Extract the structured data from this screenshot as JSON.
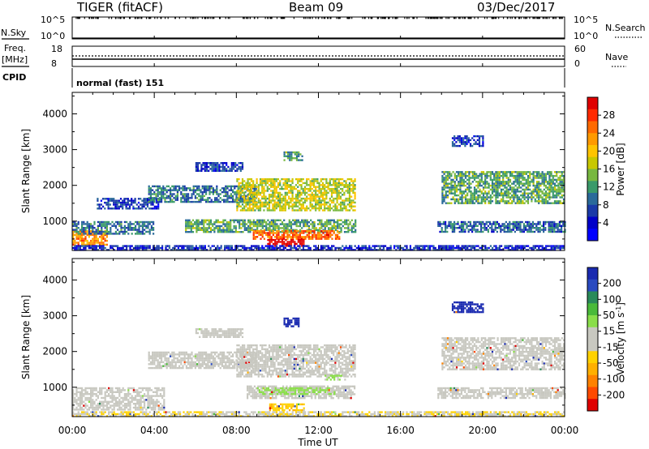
{
  "header": {
    "radar": "TIGER (fitACF)",
    "beam": "Beam 09",
    "date": "03/Dec/2017"
  },
  "top_panels": {
    "nsky_label": "N.Sky",
    "nsky_ticks": [
      "10^5",
      "10^0"
    ],
    "nsearch_label": "N.Search",
    "nsearch_ticks": [
      "10^5",
      "10^0"
    ],
    "freq_label": "Freq.",
    "freq_unit": "[MHz]",
    "freq_ticks": [
      "18",
      "8"
    ],
    "nave_label": "Nave",
    "nave_ticks": [
      "60",
      "0"
    ],
    "cpid_label": "CPID",
    "cpid_value": "normal (fast) 151"
  },
  "axes": {
    "ylabel": "Slant Range [km]",
    "yticks": [
      "4000",
      "3000",
      "2000",
      "1000"
    ],
    "xticks": [
      "00:00",
      "04:00",
      "08:00",
      "12:00",
      "16:00",
      "20:00",
      "00:00"
    ],
    "xlabel": "Time UT"
  },
  "colorbars": {
    "power": {
      "label": "Power [dB]",
      "ticks": [
        "28",
        "24",
        "20",
        "16",
        "12",
        "8",
        "4"
      ],
      "colors": [
        "#e00000",
        "#ff2a00",
        "#ff6a00",
        "#ff9a00",
        "#ffc400",
        "#c8c800",
        "#78b840",
        "#3a9a6a",
        "#2a6a9a",
        "#1a3aa8",
        "#0000c8",
        "#0000ff"
      ]
    },
    "velocity": {
      "label": "Velocity [m s",
      "label_exp": "-1",
      "label_close": "]",
      "ticks": [
        "200",
        "100",
        "50",
        "15",
        "-15",
        "-50",
        "-100",
        "-200"
      ],
      "colors": [
        "#1a2ab0",
        "#2a4ac0",
        "#2a8a5a",
        "#4aba3a",
        "#8ade4a",
        "#c8c8c0",
        "#c8c8c0",
        "#ffd200",
        "#ffb000",
        "#ff8200",
        "#ff4a00",
        "#e00000"
      ]
    }
  },
  "chart_data": [
    {
      "type": "heatmap",
      "title": "Power",
      "xlabel": "Time UT",
      "ylabel": "Slant Range [km]",
      "xlim": [
        0,
        24
      ],
      "ylim": [
        180,
        4600
      ],
      "colorbar": {
        "label": "Power [dB]",
        "range": [
          0,
          30
        ]
      },
      "regions": [
        {
          "t0": 0.0,
          "t1": 1.7,
          "r0": 350,
          "r1": 750,
          "value": 22
        },
        {
          "t0": 0.0,
          "t1": 4.0,
          "r0": 650,
          "r1": 1000,
          "value": 9
        },
        {
          "t0": 1.2,
          "t1": 4.2,
          "r0": 1350,
          "r1": 1650,
          "value": 6
        },
        {
          "t0": 3.7,
          "t1": 9.0,
          "r0": 1550,
          "r1": 2000,
          "value": 9
        },
        {
          "t0": 6.0,
          "t1": 8.3,
          "r0": 2400,
          "r1": 2650,
          "value": 6
        },
        {
          "t0": 8.0,
          "t1": 13.8,
          "r0": 1300,
          "r1": 2200,
          "value": 16
        },
        {
          "t0": 10.3,
          "t1": 11.2,
          "r0": 2700,
          "r1": 2950,
          "value": 12
        },
        {
          "t0": 5.5,
          "t1": 13.8,
          "r0": 700,
          "r1": 1050,
          "value": 12
        },
        {
          "t0": 8.8,
          "t1": 13.0,
          "r0": 500,
          "r1": 750,
          "value": 24
        },
        {
          "t0": 9.5,
          "t1": 11.3,
          "r0": 300,
          "r1": 500,
          "value": 30
        },
        {
          "t0": 18.5,
          "t1": 20.0,
          "r0": 3100,
          "r1": 3400,
          "value": 6
        },
        {
          "t0": 18.0,
          "t1": 24.0,
          "r0": 1500,
          "r1": 2400,
          "value": 12
        },
        {
          "t0": 17.8,
          "t1": 24.0,
          "r0": 700,
          "r1": 1000,
          "value": 8
        },
        {
          "t0": 0.0,
          "t1": 24.0,
          "r0": 180,
          "r1": 330,
          "value": 5
        }
      ]
    },
    {
      "type": "heatmap",
      "title": "Velocity",
      "xlabel": "Time UT",
      "ylabel": "Slant Range [km]",
      "xlim": [
        0,
        24
      ],
      "ylim": [
        180,
        4600
      ],
      "colorbar": {
        "label": "Velocity [m s-1]",
        "range": [
          -200,
          200
        ]
      },
      "regions": [
        {
          "t0": 0.0,
          "t1": 4.5,
          "r0": 350,
          "r1": 1000,
          "value": 0
        },
        {
          "t0": 3.7,
          "t1": 9.0,
          "r0": 1550,
          "r1": 2000,
          "value": 0
        },
        {
          "t0": 8.0,
          "t1": 13.8,
          "r0": 1300,
          "r1": 2200,
          "value": 0
        },
        {
          "t0": 6.0,
          "t1": 8.3,
          "r0": 2400,
          "r1": 2650,
          "value": 0
        },
        {
          "t0": 10.3,
          "t1": 11.0,
          "r0": 2700,
          "r1": 2950,
          "value": 210
        },
        {
          "t0": 8.5,
          "t1": 13.8,
          "r0": 700,
          "r1": 1050,
          "value": 0
        },
        {
          "t0": 9.0,
          "t1": 12.8,
          "r0": 800,
          "r1": 1000,
          "value": 40
        },
        {
          "t0": 12.3,
          "t1": 13.3,
          "r0": 1200,
          "r1": 1350,
          "value": 40
        },
        {
          "t0": 9.6,
          "t1": 11.3,
          "r0": 350,
          "r1": 550,
          "value": -60
        },
        {
          "t0": 18.5,
          "t1": 20.0,
          "r0": 3100,
          "r1": 3400,
          "value": 210
        },
        {
          "t0": 18.0,
          "t1": 24.0,
          "r0": 1500,
          "r1": 2400,
          "value": 0
        },
        {
          "t0": 17.8,
          "t1": 24.0,
          "r0": 700,
          "r1": 1000,
          "value": 0
        },
        {
          "t0": 0.0,
          "t1": 24.0,
          "r0": 180,
          "r1": 330,
          "value": -30
        }
      ]
    }
  ]
}
